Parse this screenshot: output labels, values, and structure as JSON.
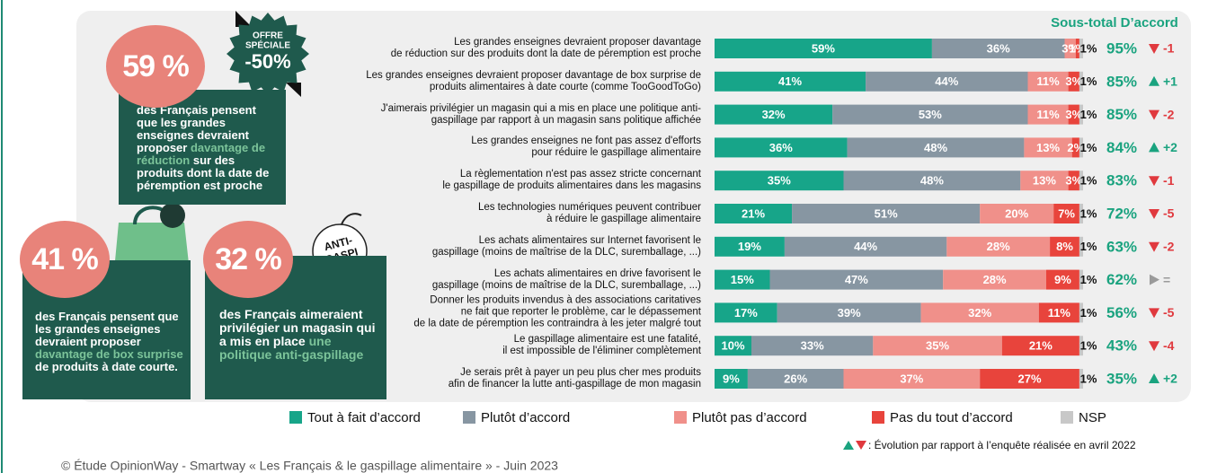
{
  "chart_data": {
    "type": "stacked-bar",
    "categories": [
      "Les grandes enseignes devraient proposer davantage\nde réduction sur des produits dont la date de péremption est proche",
      "Les grandes enseignes devraient proposer davantage de box surprise de\nproduits alimentaires à date courte (comme TooGoodToGo)",
      "J'aimerais privilégier un magasin qui a mis en place une politique anti-\ngaspillage par rapport à un magasin sans politique affichée",
      "Les grandes enseignes ne font pas assez d'efforts\npour réduire le gaspillage alimentaire",
      "La règlementation n'est pas assez stricte concernant\nle gaspillage de produits alimentaires dans les magasins",
      "Les technologies numériques peuvent contribuer\nà réduire le gaspillage alimentaire",
      "Les achats alimentaires sur Internet favorisent le\ngaspillage (moins de maîtrise de la DLC, suremballage, ...)",
      "Les achats alimentaires en drive favorisent le\ngaspillage (moins de maîtrise de la DLC, suremballage, ...)",
      "Donner les produits invendus à des associations caritatives\nne fait que reporter le problème, car le dépassement\nde la date de péremption les contraindra à les jeter malgré tout",
      "Le gaspillage alimentaire est une fatalité,\nil est impossible de l'éliminer complètement",
      "Je serais prêt à payer un peu plus cher mes produits\nafin de financer la lutte anti-gaspillage de mon magasin"
    ],
    "xlim": [
      0,
      100
    ],
    "series": [
      {
        "name": "Tout à fait d’accord",
        "color": "#17a589",
        "values": [
          59,
          41,
          32,
          36,
          35,
          21,
          19,
          15,
          17,
          10,
          9
        ],
        "value_labels": [
          "59%",
          "41%",
          "32%",
          "36%",
          "35%",
          "21%",
          "19%",
          "15%",
          "17%",
          "10%",
          "9%"
        ]
      },
      {
        "name": "Plutôt d’accord",
        "color": "#8796a2",
        "values": [
          36,
          44,
          53,
          48,
          48,
          51,
          44,
          47,
          39,
          33,
          26
        ],
        "value_labels": [
          "36%",
          "44%",
          "53%",
          "48%",
          "48%",
          "51%",
          "44%",
          "47%",
          "39%",
          "33%",
          "26%"
        ]
      },
      {
        "name": "Plutôt pas d’accord",
        "color": "#f0908a",
        "values": [
          3,
          11,
          11,
          13,
          13,
          20,
          28,
          28,
          32,
          35,
          37
        ],
        "value_labels": [
          "3%",
          "11%",
          "11%",
          "13%",
          "13%",
          "20%",
          "28%",
          "28%",
          "32%",
          "35%",
          "37%"
        ]
      },
      {
        "name": "Pas du tout d’accord",
        "color": "#e8443c",
        "values": [
          1,
          3,
          3,
          2,
          3,
          7,
          8,
          9,
          11,
          21,
          27
        ],
        "value_labels": [
          "1%",
          "3%",
          "3%",
          "2%",
          "3%",
          "7%",
          "8%",
          "9%",
          "11%",
          "21%",
          "27%"
        ]
      },
      {
        "name": "NSP",
        "color": "#c8c8c8",
        "values": [
          1,
          1,
          1,
          1,
          1,
          1,
          1,
          1,
          1,
          1,
          1
        ],
        "value_labels": [
          "1%",
          "1%",
          "1%",
          "1%",
          "1%",
          "1%",
          "1%",
          "1%",
          "1%",
          "1%",
          "1%"
        ]
      }
    ],
    "subtotal": {
      "title": "Sous-total D’accord",
      "color": "#1aa37f",
      "values": [
        95,
        85,
        85,
        84,
        83,
        72,
        63,
        62,
        56,
        43,
        35
      ],
      "value_labels": [
        "95%",
        "85%",
        "85%",
        "84%",
        "83%",
        "72%",
        "63%",
        "62%",
        "56%",
        "43%",
        "35%"
      ]
    },
    "evolution": {
      "values": [
        -1,
        1,
        -2,
        2,
        -1,
        -5,
        -2,
        0,
        -5,
        -4,
        2
      ],
      "value_labels": [
        "-1",
        "+1",
        "-2",
        "+2",
        "-1",
        "-5",
        "-2",
        "=",
        "-5",
        "-4",
        "+2"
      ],
      "up_color": "#1aa37f",
      "down_color": "#e0393e",
      "flat_color": "#9a9a9a"
    },
    "note": ": Évolution par rapport à l’enquête réalisée en avril 2022"
  },
  "panels": [
    {
      "figure": "59 %",
      "text": [
        "des Français pensent que les grandes enseignes devraient proposer ",
        "davantage de réduction",
        " sur des produits dont la date de péremption est proche"
      ]
    },
    {
      "figure": "41 %",
      "text": [
        "des Français pensent que les grandes enseignes devraient proposer ",
        "davantage de box surprise",
        " de produits à date courte."
      ]
    },
    {
      "figure": "32 %",
      "text": [
        "des Français aimeraient privilégier un magasin qui a mis en place ",
        "une politique anti-gaspillage",
        ""
      ]
    }
  ],
  "badge": {
    "lines": [
      "OFFRE",
      "SPÉCIALE",
      "-50%"
    ]
  },
  "sticker": {
    "lines": [
      "ANTI-",
      "GASPI"
    ]
  },
  "footer": "© Étude OpinionWay - Smartway « Les Français & le gaspillage alimentaire » - Juin 2023"
}
